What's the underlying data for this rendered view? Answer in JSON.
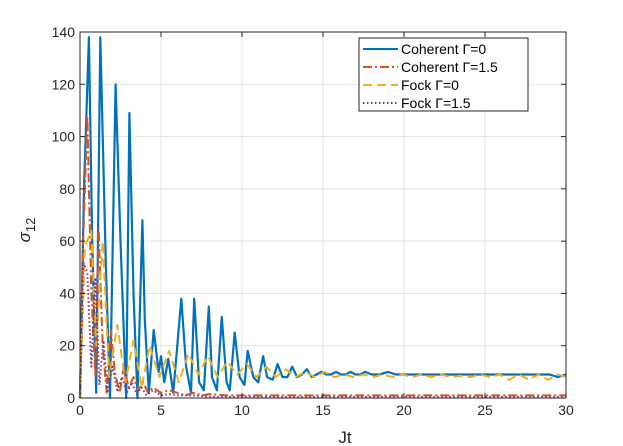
{
  "chart_data": {
    "type": "line",
    "xlabel": "Jt",
    "ylabel": "σ",
    "ylabel_sub": "12",
    "xlim": [
      0,
      30
    ],
    "ylim": [
      0,
      140
    ],
    "xticks": [
      "0",
      "5",
      "10",
      "15",
      "20",
      "25",
      "30"
    ],
    "yticks": [
      "0",
      "20",
      "40",
      "60",
      "80",
      "100",
      "120",
      "140"
    ],
    "grid": true,
    "legend_position": "top-right",
    "series": [
      {
        "name": "Coherent Γ=0",
        "color": "#0072BD",
        "style": "solid",
        "x": [
          0,
          0.25,
          0.55,
          0.75,
          1.0,
          1.25,
          1.6,
          1.85,
          2.2,
          2.5,
          2.85,
          3.05,
          3.3,
          3.55,
          3.85,
          4.0,
          4.25,
          4.55,
          4.85,
          5.0,
          5.2,
          5.45,
          5.75,
          5.95,
          6.25,
          6.55,
          6.85,
          7.05,
          7.35,
          7.65,
          7.95,
          8.15,
          8.45,
          8.75,
          9.05,
          9.25,
          9.55,
          9.85,
          10.15,
          10.35,
          10.7,
          11.0,
          11.3,
          11.55,
          11.9,
          12.2,
          12.5,
          12.8,
          13.1,
          13.4,
          13.7,
          14.0,
          14.3,
          14.6,
          14.9,
          15.2,
          15.5,
          15.8,
          16.1,
          16.4,
          16.7,
          17.0,
          17.3,
          17.6,
          18.0,
          18.5,
          19.0,
          19.5,
          20.0,
          21.0,
          22.0,
          23.0,
          24.0,
          25.0,
          26.0,
          27.0,
          28.0,
          29.0,
          29.5,
          30.0
        ],
        "values": [
          0,
          80,
          138,
          60,
          2,
          138,
          50,
          0,
          120,
          60,
          0,
          109,
          40,
          0,
          68,
          30,
          2,
          26,
          10,
          16,
          6,
          15,
          2,
          16,
          38,
          12,
          2,
          38,
          6,
          3,
          35,
          8,
          3,
          31,
          6,
          3,
          25,
          8,
          5,
          18,
          8,
          6,
          16,
          8,
          7,
          13,
          8,
          8,
          12,
          8,
          9,
          11,
          8,
          9,
          10,
          9,
          9,
          10,
          9,
          9,
          10,
          9,
          9,
          10,
          9,
          9,
          10,
          9,
          9,
          9,
          9,
          9,
          9,
          9,
          9,
          9,
          9,
          9,
          8,
          9
        ]
      },
      {
        "name": "Coherent Γ=1.5",
        "color": "#D95319",
        "style": "dashdot",
        "x": [
          0,
          0.2,
          0.45,
          0.7,
          0.95,
          1.15,
          1.4,
          1.65,
          1.9,
          2.15,
          2.45,
          2.7,
          3.0,
          3.3,
          3.6,
          3.9,
          4.2,
          4.5,
          5.0,
          5.5,
          6.0,
          6.5,
          7.0,
          7.5,
          8.0,
          9.0,
          10.0,
          12.0,
          15.0,
          20.0,
          25.0,
          30.0
        ],
        "values": [
          0,
          60,
          108,
          40,
          8,
          65,
          20,
          2,
          26,
          10,
          2,
          12,
          4,
          8,
          3,
          6,
          2,
          4,
          2,
          3,
          2,
          1,
          2,
          1,
          1.5,
          1,
          1,
          1,
          1,
          1,
          1,
          1
        ]
      },
      {
        "name": "Fock Γ=0",
        "color": "#EDB120",
        "style": "dashed",
        "x": [
          0,
          0.3,
          0.7,
          1.0,
          1.4,
          1.8,
          2.3,
          2.8,
          3.3,
          3.8,
          4.3,
          4.9,
          5.5,
          6.1,
          6.7,
          7.3,
          7.9,
          8.5,
          9.1,
          9.7,
          10.3,
          10.9,
          11.5,
          12.1,
          12.7,
          13.3,
          13.9,
          14.5,
          15.1,
          15.7,
          16.3,
          16.9,
          17.5,
          18.1,
          18.7,
          19.3,
          19.9,
          20.5,
          21.1,
          21.7,
          22.3,
          22.9,
          23.5,
          24.1,
          24.7,
          25.3,
          25.9,
          26.5,
          27.1,
          27.7,
          28.3,
          28.9,
          29.5,
          30.0
        ],
        "values": [
          0,
          58,
          64,
          20,
          60,
          8,
          28,
          6,
          22,
          4,
          20,
          8,
          18,
          6,
          17,
          9,
          16,
          8,
          14,
          9,
          13,
          8,
          12,
          8,
          11,
          8,
          10,
          8,
          10,
          8,
          9,
          8,
          9,
          8,
          9,
          8,
          9,
          8,
          9,
          8,
          9,
          8,
          8.5,
          8,
          9,
          8,
          9,
          7,
          9,
          7,
          9,
          7,
          9,
          8
        ]
      },
      {
        "name": "Fock Γ=1.5",
        "color": "#7E2F8E",
        "style": "dotted",
        "x": [
          0,
          0.2,
          0.45,
          0.7,
          0.95,
          1.2,
          1.45,
          1.7,
          2.0,
          2.3,
          2.6,
          2.9,
          3.2,
          3.5,
          3.8,
          4.1,
          4.5,
          5.0,
          5.5,
          6.0,
          7.0,
          8.0,
          10.0,
          15.0,
          20.0,
          25.0,
          30.0
        ],
        "values": [
          0,
          52,
          48,
          12,
          46,
          5,
          22,
          2,
          12,
          3,
          8,
          2,
          6,
          1.5,
          4,
          1,
          3,
          1,
          1.5,
          1,
          1,
          0.5,
          0.5,
          0.5,
          0.5,
          0.5,
          0.5
        ]
      }
    ]
  }
}
